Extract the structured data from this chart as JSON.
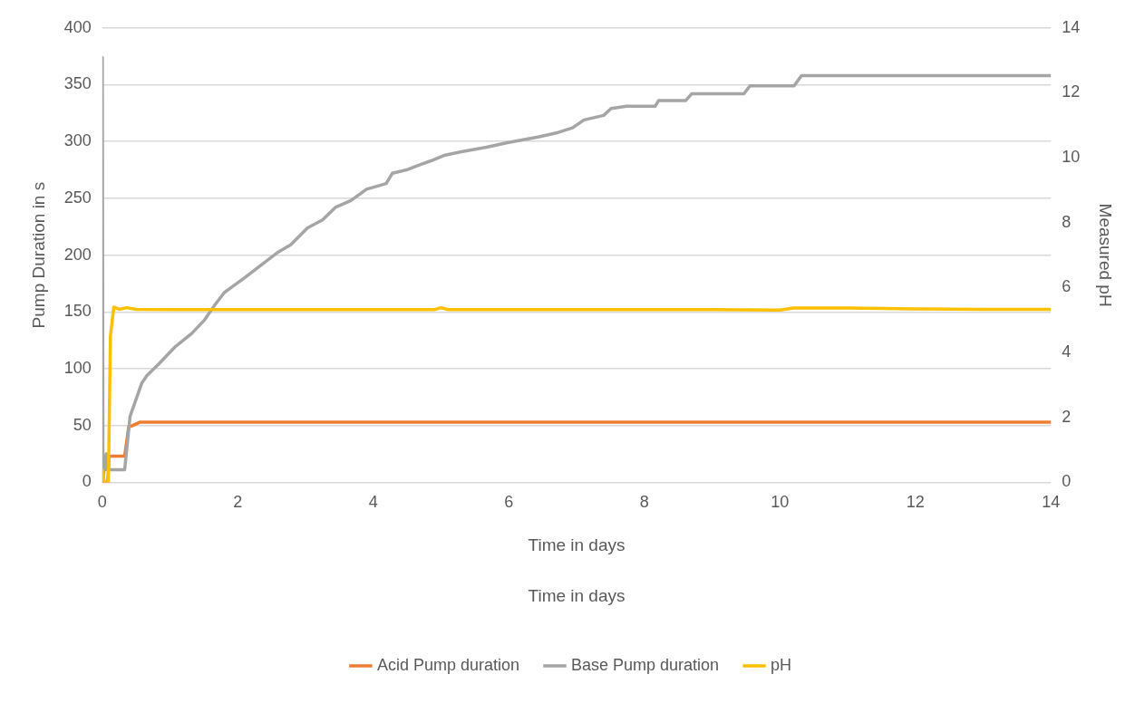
{
  "chart_data": {
    "type": "line",
    "xlabel": "Time in days",
    "ylabel": "Pump Duration in s",
    "y2label": "Measured pH",
    "annotations": [
      "Time in days"
    ],
    "xlim": [
      0,
      14
    ],
    "xticks": [
      0,
      2,
      4,
      6,
      8,
      10,
      12,
      14
    ],
    "ylim": [
      0,
      400
    ],
    "yticks": [
      0,
      50,
      100,
      150,
      200,
      250,
      300,
      350,
      400
    ],
    "y2lim": [
      0,
      14
    ],
    "y2ticks": [
      0,
      2,
      4,
      6,
      8,
      10,
      12,
      14
    ],
    "grid": "y",
    "legend": "bottom",
    "marker": "none",
    "line_style": "solid",
    "series": [
      {
        "name": "Acid Pump duration",
        "color": "#ed7d31",
        "x": [
          0,
          0.08,
          0.1,
          0.33,
          0.39,
          0.45,
          0.56,
          14
        ],
        "values": [
          0,
          0,
          23,
          23,
          49,
          50,
          53,
          53
        ]
      },
      {
        "name": "Base Pump duration",
        "color": "#a5a5a5",
        "x": [
          0,
          0.01,
          0.04,
          0.06,
          0.07,
          0.33,
          0.41,
          0.58,
          0.66,
          0.83,
          1.07,
          1.32,
          1.51,
          1.66,
          1.8,
          2.1,
          2.34,
          2.58,
          2.78,
          3.03,
          3.25,
          3.44,
          3.67,
          3.9,
          4.19,
          4.28,
          4.49,
          4.66,
          4.85,
          5.06,
          5.3,
          5.67,
          5.98,
          6.43,
          6.73,
          6.94,
          7.11,
          7.4,
          7.51,
          7.74,
          8.16,
          8.21,
          8.61,
          8.7,
          9.47,
          9.56,
          10.21,
          10.32,
          14
        ],
        "values": [
          374,
          0,
          20,
          25,
          11,
          11,
          58,
          87,
          94,
          104,
          119,
          131,
          143,
          156,
          167,
          180,
          191,
          202,
          209,
          224,
          231,
          242,
          248,
          258,
          263,
          272,
          275,
          279,
          283,
          288,
          291,
          295,
          299,
          304,
          308,
          312,
          319,
          323,
          329,
          331,
          331,
          336,
          336,
          342,
          342,
          349,
          349,
          358,
          358
        ]
      },
      {
        "name": "pH",
        "color": "#ffc000",
        "axis": "y2",
        "x": [
          0,
          0.03,
          0.09,
          0.12,
          0.17,
          0.25,
          0.36,
          0.5,
          1,
          2,
          3,
          4,
          4.9,
          5.0,
          5.1,
          6,
          7,
          8,
          9,
          10,
          10.2,
          11,
          12,
          13,
          14
        ],
        "values": [
          0.37,
          0,
          0,
          4.5,
          5.4,
          5.33,
          5.38,
          5.33,
          5.32,
          5.32,
          5.32,
          5.32,
          5.32,
          5.38,
          5.32,
          5.32,
          5.32,
          5.32,
          5.32,
          5.31,
          5.37,
          5.37,
          5.34,
          5.33,
          5.33
        ]
      }
    ]
  }
}
